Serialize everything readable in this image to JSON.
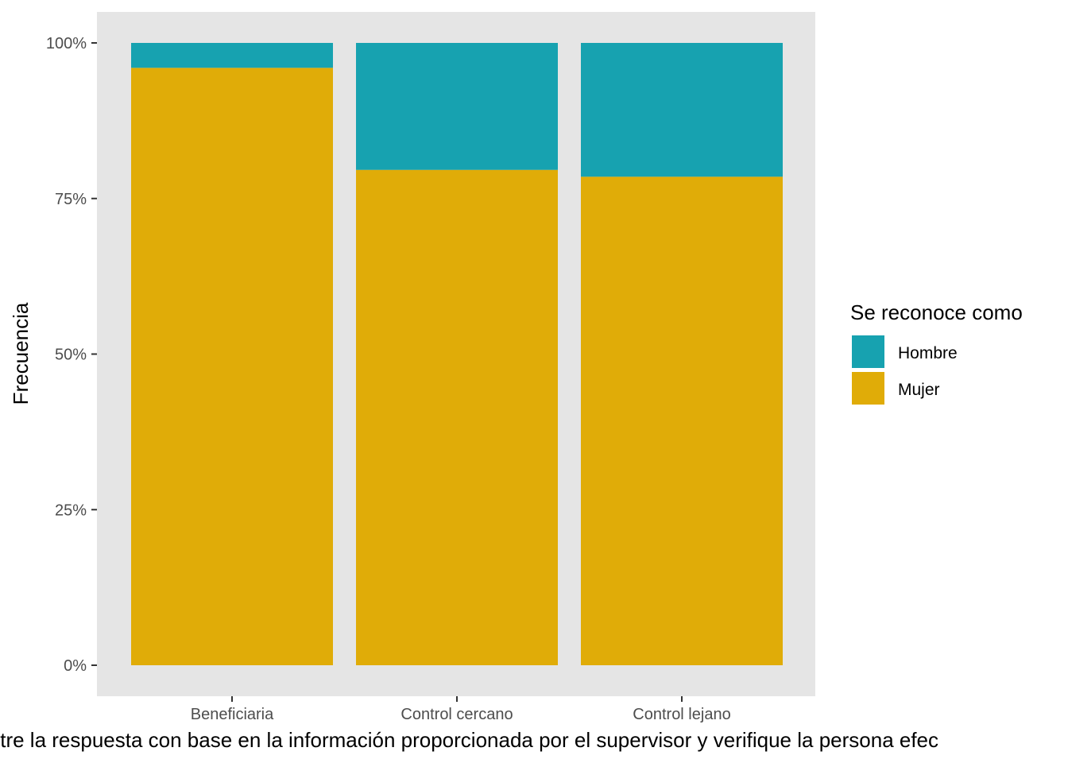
{
  "chart_data": {
    "type": "bar",
    "stacked": true,
    "categories": [
      "Beneficiaria",
      "Control cercano",
      "Control lejano"
    ],
    "series": [
      {
        "name": "Mujer",
        "values": [
          0.96,
          0.796,
          0.785
        ],
        "color": "#E0AC08"
      },
      {
        "name": "Hombre",
        "values": [
          0.04,
          0.204,
          0.215
        ],
        "color": "#17A2B0"
      }
    ],
    "ylabel": "Frecuencia",
    "xlabel": "gistre la respuesta con base en la información proporcionada por el supervisor y verifique la persona efec",
    "ylim": [
      0,
      1
    ],
    "y_ticks": [
      {
        "value": 0,
        "label": "0%"
      },
      {
        "value": 0.25,
        "label": "25%"
      },
      {
        "value": 0.5,
        "label": "50%"
      },
      {
        "value": 0.75,
        "label": "75%"
      },
      {
        "value": 1,
        "label": "100%"
      }
    ],
    "legend": {
      "title": "Se reconoce como",
      "position": "right",
      "entries": [
        {
          "label": "Hombre",
          "color": "#17A2B0"
        },
        {
          "label": "Mujer",
          "color": "#E0AC08"
        }
      ]
    },
    "panel_background": "#E5E5E5",
    "grid": false
  }
}
